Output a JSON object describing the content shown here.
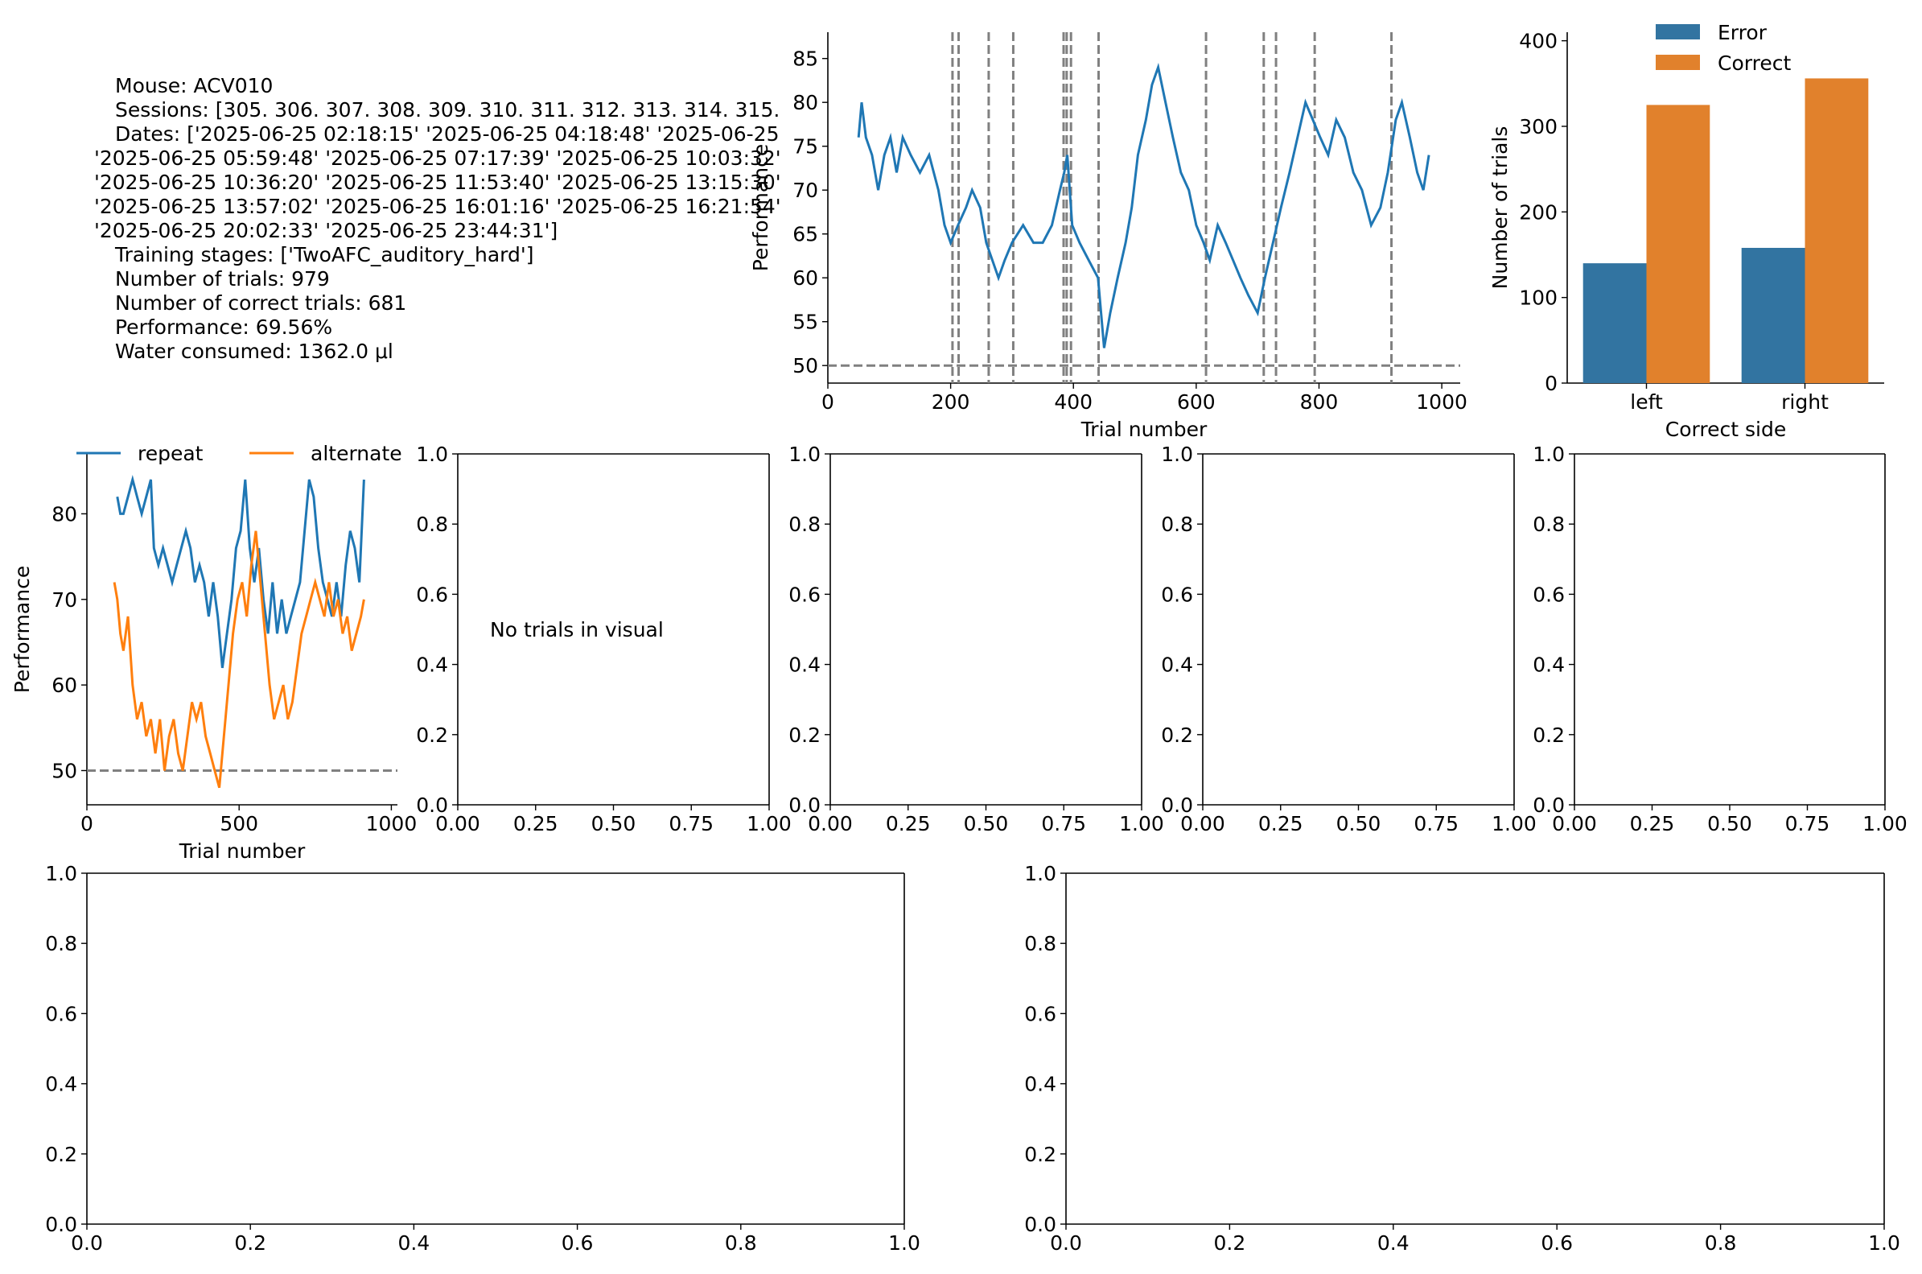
{
  "info_text": [
    "Mouse: ACV010",
    "Sessions: [305. 306. 307. 308. 309. 310. 311. 312. 313. 314. 315.",
    "Dates: ['2025-06-25 02:18:15' '2025-06-25 04:18:48' '2025-06-25",
    "'2025-06-25 05:59:48' '2025-06-25 07:17:39' '2025-06-25 10:03:32'",
    "'2025-06-25 10:36:20' '2025-06-25 11:53:40' '2025-06-25 13:15:30'",
    "'2025-06-25 13:57:02' '2025-06-25 16:01:16' '2025-06-25 16:21:54'",
    "'2025-06-25 20:02:33' '2025-06-25 23:44:31']",
    "Training stages: ['TwoAFC_auditory_hard']",
    "Number of trials: 979",
    "Number of correct trials: 681",
    "Performance: 69.56%",
    "Water consumed: 1362.0 μl"
  ],
  "colors": {
    "blue": "#1f77b4",
    "orange": "#ff7f0e",
    "error_bar": "#3274a1",
    "correct_bar": "#e1812c",
    "grey": "#808080"
  },
  "chart_data": [
    {
      "id": "performance",
      "type": "line",
      "xlabel": "Trial number",
      "ylabel": "Performance",
      "xlim": [
        0,
        1030
      ],
      "ylim": [
        48,
        88
      ],
      "xticks": [
        0,
        200,
        400,
        600,
        800,
        1000
      ],
      "yticks": [
        50,
        55,
        60,
        65,
        70,
        75,
        80,
        85
      ],
      "hline": 50,
      "session_boundaries": [
        203,
        213,
        262,
        302,
        384,
        389,
        396,
        441,
        616,
        710,
        730,
        793,
        918
      ],
      "series": [
        {
          "color": "#1f77b4",
          "points": [
            [
              50,
              76
            ],
            [
              55,
              80
            ],
            [
              62,
              76
            ],
            [
              72,
              74
            ],
            [
              82,
              70
            ],
            [
              92,
              74
            ],
            [
              102,
              76
            ],
            [
              112,
              72
            ],
            [
              122,
              76
            ],
            [
              135,
              74
            ],
            [
              150,
              72
            ],
            [
              165,
              74
            ],
            [
              180,
              70
            ],
            [
              190,
              66
            ],
            [
              200,
              64
            ],
            [
              212,
              66
            ],
            [
              225,
              68
            ],
            [
              235,
              70
            ],
            [
              248,
              68
            ],
            [
              258,
              64
            ],
            [
              268,
              62
            ],
            [
              278,
              60
            ],
            [
              288,
              62
            ],
            [
              300,
              64
            ],
            [
              318,
              66
            ],
            [
              335,
              64
            ],
            [
              350,
              64
            ],
            [
              365,
              66
            ],
            [
              378,
              70
            ],
            [
              385,
              72
            ],
            [
              390,
              74
            ],
            [
              398,
              66
            ],
            [
              410,
              64
            ],
            [
              425,
              62
            ],
            [
              440,
              60
            ],
            [
              450,
              52
            ],
            [
              460,
              56
            ],
            [
              472,
              60
            ],
            [
              485,
              64
            ],
            [
              495,
              68
            ],
            [
              505,
              74
            ],
            [
              518,
              78
            ],
            [
              528,
              82
            ],
            [
              538,
              84
            ],
            [
              550,
              80
            ],
            [
              562,
              76
            ],
            [
              575,
              72
            ],
            [
              588,
              70
            ],
            [
              600,
              66
            ],
            [
              612,
              64
            ],
            [
              622,
              62
            ],
            [
              635,
              66
            ],
            [
              648,
              64
            ],
            [
              660,
              62
            ],
            [
              672,
              60
            ],
            [
              685,
              58
            ],
            [
              700,
              56
            ],
            [
              712,
              60
            ],
            [
              725,
              64
            ],
            [
              738,
              68
            ],
            [
              752,
              72
            ],
            [
              765,
              76
            ],
            [
              778,
              80
            ],
            [
              790,
              78
            ],
            [
              802,
              76
            ],
            [
              815,
              74
            ],
            [
              828,
              78
            ],
            [
              842,
              76
            ],
            [
              856,
              72
            ],
            [
              870,
              70
            ],
            [
              885,
              66
            ],
            [
              900,
              68
            ],
            [
              912,
              72
            ],
            [
              925,
              78
            ],
            [
              935,
              80
            ],
            [
              948,
              76
            ],
            [
              960,
              72
            ],
            [
              970,
              70
            ],
            [
              979,
              74
            ]
          ]
        }
      ]
    },
    {
      "id": "correct-side",
      "type": "bar",
      "xlabel": "Correct side",
      "ylabel": "Number of trials",
      "categories": [
        "left",
        "right"
      ],
      "ylim": [
        0,
        410
      ],
      "yticks": [
        0,
        100,
        200,
        300,
        400
      ],
      "legend": "top-center",
      "series": [
        {
          "name": "Error",
          "color": "#3274a1",
          "values": [
            140,
            158
          ]
        },
        {
          "name": "Correct",
          "color": "#e1812c",
          "values": [
            325,
            356
          ]
        }
      ]
    },
    {
      "id": "repeat-alternate",
      "type": "line",
      "xlabel": "Trial number",
      "ylabel": "Performance",
      "xlim": [
        0,
        1020
      ],
      "ylim": [
        46,
        87
      ],
      "xticks": [
        0,
        500,
        1000
      ],
      "yticks": [
        50,
        60,
        70,
        80
      ],
      "hline": 50,
      "legend": "top",
      "series": [
        {
          "name": "repeat",
          "color": "#1f77b4",
          "points": [
            [
              100,
              82
            ],
            [
              110,
              80
            ],
            [
              120,
              80
            ],
            [
              135,
              82
            ],
            [
              150,
              84
            ],
            [
              165,
              82
            ],
            [
              180,
              80
            ],
            [
              195,
              82
            ],
            [
              210,
              84
            ],
            [
              220,
              76
            ],
            [
              235,
              74
            ],
            [
              250,
              76
            ],
            [
              265,
              74
            ],
            [
              280,
              72
            ],
            [
              295,
              74
            ],
            [
              310,
              76
            ],
            [
              325,
              78
            ],
            [
              340,
              76
            ],
            [
              355,
              72
            ],
            [
              370,
              74
            ],
            [
              385,
              72
            ],
            [
              400,
              68
            ],
            [
              415,
              72
            ],
            [
              430,
              68
            ],
            [
              445,
              62
            ],
            [
              460,
              66
            ],
            [
              475,
              70
            ],
            [
              490,
              76
            ],
            [
              505,
              78
            ],
            [
              520,
              84
            ],
            [
              535,
              76
            ],
            [
              550,
              72
            ],
            [
              565,
              76
            ],
            [
              580,
              70
            ],
            [
              595,
              66
            ],
            [
              610,
              72
            ],
            [
              625,
              66
            ],
            [
              640,
              70
            ],
            [
              655,
              66
            ],
            [
              670,
              68
            ],
            [
              685,
              70
            ],
            [
              700,
              72
            ],
            [
              715,
              78
            ],
            [
              730,
              84
            ],
            [
              745,
              82
            ],
            [
              760,
              76
            ],
            [
              775,
              72
            ],
            [
              790,
              70
            ],
            [
              805,
              68
            ],
            [
              820,
              72
            ],
            [
              835,
              68
            ],
            [
              850,
              74
            ],
            [
              865,
              78
            ],
            [
              880,
              76
            ],
            [
              895,
              72
            ],
            [
              910,
              84
            ]
          ]
        },
        {
          "name": "alternate",
          "color": "#ff7f0e",
          "points": [
            [
              90,
              72
            ],
            [
              100,
              70
            ],
            [
              110,
              66
            ],
            [
              120,
              64
            ],
            [
              135,
              68
            ],
            [
              150,
              60
            ],
            [
              165,
              56
            ],
            [
              180,
              58
            ],
            [
              195,
              54
            ],
            [
              210,
              56
            ],
            [
              225,
              52
            ],
            [
              240,
              56
            ],
            [
              255,
              50
            ],
            [
              270,
              54
            ],
            [
              285,
              56
            ],
            [
              300,
              52
            ],
            [
              315,
              50
            ],
            [
              330,
              54
            ],
            [
              345,
              58
            ],
            [
              360,
              56
            ],
            [
              375,
              58
            ],
            [
              390,
              54
            ],
            [
              405,
              52
            ],
            [
              420,
              50
            ],
            [
              435,
              48
            ],
            [
              450,
              54
            ],
            [
              465,
              60
            ],
            [
              480,
              66
            ],
            [
              495,
              70
            ],
            [
              510,
              72
            ],
            [
              525,
              68
            ],
            [
              540,
              74
            ],
            [
              555,
              78
            ],
            [
              570,
              72
            ],
            [
              585,
              66
            ],
            [
              600,
              60
            ],
            [
              615,
              56
            ],
            [
              630,
              58
            ],
            [
              645,
              60
            ],
            [
              660,
              56
            ],
            [
              675,
              58
            ],
            [
              690,
              62
            ],
            [
              705,
              66
            ],
            [
              720,
              68
            ],
            [
              735,
              70
            ],
            [
              750,
              72
            ],
            [
              765,
              70
            ],
            [
              780,
              68
            ],
            [
              795,
              72
            ],
            [
              810,
              68
            ],
            [
              825,
              70
            ],
            [
              840,
              66
            ],
            [
              855,
              68
            ],
            [
              870,
              64
            ],
            [
              885,
              66
            ],
            [
              900,
              68
            ],
            [
              910,
              70
            ]
          ]
        }
      ]
    },
    {
      "id": "visual-empty",
      "type": "line",
      "annotation": "No trials in visual",
      "xlim": [
        0,
        1
      ],
      "ylim": [
        0,
        1
      ],
      "xticks": [
        "0.00",
        "0.25",
        "0.50",
        "0.75",
        "1.00"
      ],
      "yticks": [
        "0.0",
        "0.2",
        "0.4",
        "0.6",
        "0.8",
        "1.0"
      ]
    },
    {
      "id": "empty-2",
      "type": "line",
      "xlim": [
        0,
        1
      ],
      "ylim": [
        0,
        1
      ],
      "xticks": [
        "0.00",
        "0.25",
        "0.50",
        "0.75",
        "1.00"
      ],
      "yticks": [
        "0.0",
        "0.2",
        "0.4",
        "0.6",
        "0.8",
        "1.0"
      ]
    },
    {
      "id": "empty-3",
      "type": "line",
      "xlim": [
        0,
        1
      ],
      "ylim": [
        0,
        1
      ],
      "xticks": [
        "0.00",
        "0.25",
        "0.50",
        "0.75",
        "1.00"
      ],
      "yticks": [
        "0.0",
        "0.2",
        "0.4",
        "0.6",
        "0.8",
        "1.0"
      ]
    },
    {
      "id": "empty-4",
      "type": "line",
      "xlim": [
        0,
        1
      ],
      "ylim": [
        0,
        1
      ],
      "xticks": [
        "0.00",
        "0.25",
        "0.50",
        "0.75",
        "1.00"
      ],
      "yticks": [
        "0.0",
        "0.2",
        "0.4",
        "0.6",
        "0.8",
        "1.0"
      ]
    },
    {
      "id": "empty-5",
      "type": "line",
      "xlim": [
        0,
        1
      ],
      "ylim": [
        0,
        1
      ],
      "xticks": [
        "0.0",
        "0.2",
        "0.4",
        "0.6",
        "0.8",
        "1.0"
      ],
      "yticks": [
        "0.0",
        "0.2",
        "0.4",
        "0.6",
        "0.8",
        "1.0"
      ]
    },
    {
      "id": "empty-6",
      "type": "line",
      "xlim": [
        0,
        1
      ],
      "ylim": [
        0,
        1
      ],
      "xticks": [
        "0.0",
        "0.2",
        "0.4",
        "0.6",
        "0.8",
        "1.0"
      ],
      "yticks": [
        "0.0",
        "0.2",
        "0.4",
        "0.6",
        "0.8",
        "1.0"
      ]
    }
  ]
}
